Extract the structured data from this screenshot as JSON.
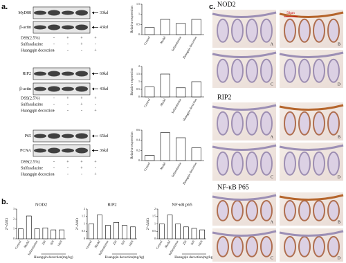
{
  "panel_labels": [
    "a.",
    "b.",
    "c."
  ],
  "blots": [
    {
      "bands": [
        {
          "name": "MyD88",
          "size": "33kd"
        },
        {
          "name": "β-actin",
          "size": "43kd"
        }
      ],
      "treatments": [
        {
          "name": "DSS(2.5%)",
          "marks": [
            "-",
            "+",
            "+",
            "+"
          ]
        },
        {
          "name": "Sulfasalazine",
          "marks": [
            "-",
            "-",
            "+",
            "-"
          ]
        },
        {
          "name": "Huangqin decoction",
          "marks": [
            "-",
            "-",
            "-",
            "+"
          ]
        }
      ]
    },
    {
      "bands": [
        {
          "name": "RIP2",
          "size": "60kd"
        },
        {
          "name": "β-actin",
          "size": "43kd"
        }
      ],
      "treatments": [
        {
          "name": "DSS(2.5%)",
          "marks": [
            "-",
            "+",
            "+",
            "+"
          ]
        },
        {
          "name": "Sulfasalazine",
          "marks": [
            "-",
            "-",
            "+",
            "-"
          ]
        },
        {
          "name": "Huangqin decoction",
          "marks": [
            "-",
            "-",
            "-",
            "+"
          ]
        }
      ]
    },
    {
      "bands": [
        {
          "name": "P65",
          "size": "65kd"
        },
        {
          "name": "PCNA",
          "size": "36kd"
        }
      ],
      "treatments": [
        {
          "name": "DSS(2.5%)",
          "marks": [
            "-",
            "+",
            "+",
            "+"
          ]
        },
        {
          "name": "Sulfasalazine",
          "marks": [
            "-",
            "-",
            "+",
            "-"
          ]
        },
        {
          "name": "Huangqin decoction",
          "marks": [
            "-",
            "-",
            "-",
            "+"
          ]
        }
      ]
    }
  ],
  "chart_data": [
    {
      "type": "bar",
      "y_label": "Relative expression",
      "color": "#ffffff",
      "categories": [
        "Control",
        "Model",
        "Sulfasalazine",
        "Huangqin decoction"
      ],
      "values": [
        0.35,
        0.75,
        0.55,
        0.75
      ],
      "ylim": [
        0,
        1.5
      ],
      "yticks": [
        0,
        0.5,
        1,
        1.5
      ]
    },
    {
      "type": "bar",
      "y_label": "Relative expression",
      "color": "#ffffff",
      "categories": [
        "Control",
        "Model",
        "Sulfasalazine",
        "Huangqin decoction"
      ],
      "values": [
        0.65,
        1.5,
        0.6,
        1.0
      ],
      "ylim": [
        0,
        2
      ],
      "yticks": [
        0,
        0.5,
        1,
        1.5,
        2
      ]
    },
    {
      "type": "bar",
      "y_label": "Relative expression",
      "color": "#ffffff",
      "categories": [
        "Control",
        "Model",
        "Sulfasalazine",
        "Huangqin decoction"
      ],
      "values": [
        0.1,
        0.55,
        0.45,
        0.25
      ],
      "ylim": [
        0,
        0.6
      ],
      "yticks": [
        0,
        0.2,
        0.4,
        0.6
      ]
    },
    {
      "type": "bar",
      "title": "NOD2",
      "y_label": "2^-ΔΔCt",
      "x_label": "Huangqin decoction(mg/kg)",
      "color": "#ffffff",
      "categories": [
        "Control",
        "Model",
        "Sulfasalazine",
        "250",
        "500",
        "1000"
      ],
      "values": [
        1,
        2.3,
        1,
        1.1,
        0.9,
        0.9
      ],
      "ylim": [
        0,
        3
      ],
      "yticks": [
        0,
        1,
        2,
        3
      ]
    },
    {
      "type": "bar",
      "title": "RIP2",
      "y_label": "2^-ΔΔCt",
      "x_label": "Huangqin decoction(mg/kg)",
      "color": "#ffffff",
      "categories": [
        "Control",
        "Model",
        "Sulfasalazine",
        "250",
        "500",
        "1000"
      ],
      "values": [
        1,
        1.6,
        0.9,
        1.1,
        0.9,
        0.8
      ],
      "ylim": [
        0,
        2
      ],
      "yticks": [
        0,
        0.5,
        1,
        1.5,
        2
      ]
    },
    {
      "type": "bar",
      "title": "NF-κB p65",
      "y_label": "2^-ΔΔCt",
      "x_label": "Huangqin decoction(mg/kg)",
      "color": "#ffffff",
      "categories": [
        "Control",
        "Model",
        "Sulfasalazine",
        "250",
        "500",
        "1000"
      ],
      "values": [
        1,
        1.6,
        1.0,
        0.8,
        0.7,
        0.6
      ],
      "ylim": [
        0,
        2
      ],
      "yticks": [
        0,
        0.5,
        1,
        1.5,
        2
      ]
    }
  ],
  "histology": [
    {
      "title": "NOD2",
      "panels": [
        "A",
        "B",
        "C",
        "D"
      ]
    },
    {
      "title": "RIP2",
      "panels": [
        "A",
        "B",
        "C",
        "D"
      ]
    },
    {
      "title": "NF-κB P65",
      "panels": [
        "A",
        "B",
        "C",
        "D"
      ]
    }
  ],
  "scale_bar": "50μm"
}
